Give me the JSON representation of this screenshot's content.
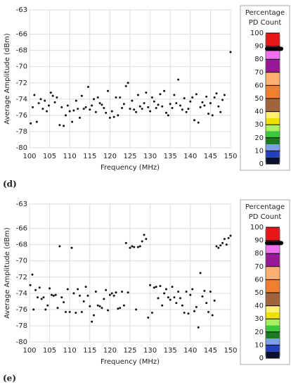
{
  "chart_data": [
    {
      "type": "scatter",
      "panel_label": "(d)",
      "xlabel": "Frequency (MHz)",
      "ylabel": "Average Amplitude (dBm)",
      "xlim": [
        100,
        150
      ],
      "ylim": [
        -80,
        -63
      ],
      "xticks": [
        100,
        105,
        110,
        115,
        120,
        125,
        130,
        135,
        140,
        145,
        150
      ],
      "yticks": [
        -80,
        -78,
        -76,
        -74,
        -72,
        -70,
        -68,
        -66,
        -63
      ],
      "grid": true,
      "color": "#111111",
      "x": [
        100.3,
        100.8,
        101.2,
        101.8,
        102.3,
        102.8,
        103.3,
        103.8,
        104.3,
        104.8,
        105.3,
        105.8,
        106.3,
        106.8,
        107.5,
        108,
        108.5,
        109,
        109.5,
        110,
        110.6,
        111,
        111.6,
        112,
        112.5,
        113,
        113.5,
        114,
        114.6,
        115,
        115.5,
        116,
        116.5,
        117,
        117.5,
        118,
        118.5,
        119,
        119.5,
        120,
        120.5,
        121,
        121.5,
        122,
        122.5,
        123,
        123.5,
        124,
        124.5,
        125,
        125.5,
        126,
        126.5,
        127,
        127.5,
        128,
        128.5,
        129,
        129.5,
        130,
        130.5,
        131,
        131.5,
        132,
        132.5,
        133,
        133.5,
        134,
        134.5,
        135,
        135.5,
        136,
        136.5,
        137,
        137.5,
        138,
        138.5,
        139,
        139.5,
        140,
        140.5,
        141,
        141.5,
        142,
        142.5,
        143,
        143.5,
        144,
        144.5,
        145,
        145.5,
        146,
        146.5,
        147,
        147.5,
        148,
        148.5,
        150
      ],
      "values": [
        -77,
        -75,
        -73.5,
        -76.8,
        -74.5,
        -74,
        -75.2,
        -74.2,
        -75.5,
        -74.8,
        -73.2,
        -73.6,
        -74.4,
        -73.8,
        -77.2,
        -75,
        -77.3,
        -76,
        -74.8,
        -75.5,
        -76.8,
        -75.4,
        -74.2,
        -75.2,
        -76.3,
        -73.6,
        -75.2,
        -75,
        -72.5,
        -75.3,
        -74.8,
        -74,
        -75.6,
        -73.8,
        -74.5,
        -74.7,
        -75.1,
        -75.7,
        -73,
        -76.3,
        -75.5,
        -76.2,
        -73.8,
        -76,
        -73.8,
        -75.1,
        -74.6,
        -72.4,
        -72,
        -75.2,
        -74.2,
        -75.3,
        -75.6,
        -73.5,
        -74.9,
        -75.2,
        -74.5,
        -73.2,
        -75,
        -75.5,
        -73.8,
        -74.3,
        -75.1,
        -74.7,
        -73.4,
        -74.9,
        -73,
        -75.7,
        -76,
        -74.6,
        -75.1,
        -73.5,
        -74.5,
        -71.6,
        -74.8,
        -75.3,
        -73.9,
        -75.6,
        -75.2,
        -74.3,
        -73.8,
        -76.6,
        -73.4,
        -76.9,
        -75,
        -74.4,
        -74.8,
        -73.7,
        -75.8,
        -74.5,
        -76,
        -73.8,
        -73.3,
        -74.9,
        -75.6,
        -74.1,
        -73.5,
        -68.2
      ],
      "colorbar": {
        "title": [
          "Percentage",
          "PD Count"
        ],
        "lim": [
          0,
          100
        ],
        "ticks": [
          0,
          10,
          20,
          30,
          40,
          50,
          60,
          70,
          80,
          90,
          100
        ],
        "thumb": 88,
        "segments": [
          {
            "from": 0,
            "to": 5,
            "color": "#0a1030"
          },
          {
            "from": 5,
            "to": 10,
            "color": "#2040c0"
          },
          {
            "from": 10,
            "to": 15,
            "color": "#7aa0e8"
          },
          {
            "from": 15,
            "to": 20,
            "color": "#1e7a1e"
          },
          {
            "from": 20,
            "to": 25,
            "color": "#3cc83c"
          },
          {
            "from": 25,
            "to": 30,
            "color": "#a8f060"
          },
          {
            "from": 30,
            "to": 35,
            "color": "#f0e000"
          },
          {
            "from": 35,
            "to": 40,
            "color": "#fff070"
          },
          {
            "from": 40,
            "to": 50,
            "color": "#a0643c"
          },
          {
            "from": 50,
            "to": 60,
            "color": "#f08030"
          },
          {
            "from": 60,
            "to": 70,
            "color": "#ffb070"
          },
          {
            "from": 70,
            "to": 80,
            "color": "#981898"
          },
          {
            "from": 80,
            "to": 90,
            "color": "#f070f0"
          },
          {
            "from": 90,
            "to": 100,
            "color": "#e81818"
          }
        ]
      }
    },
    {
      "type": "scatter",
      "panel_label": "(e)",
      "xlabel": "Frequency (MHz)",
      "ylabel": "Average Amplitude (dBm)",
      "xlim": [
        100,
        150
      ],
      "ylim": [
        -80,
        -63
      ],
      "xticks": [
        100,
        105,
        110,
        115,
        120,
        125,
        130,
        135,
        140,
        145,
        150
      ],
      "yticks": [
        -80,
        -78,
        -76,
        -74,
        -72,
        -70,
        -68,
        -66,
        -63
      ],
      "grid": true,
      "color": "#111111",
      "x": [
        100.2,
        100.7,
        101,
        101.5,
        102,
        102.5,
        103,
        103.5,
        104,
        104.5,
        105,
        105.5,
        106,
        106.5,
        107,
        107.5,
        108,
        108.5,
        109,
        109.5,
        110,
        110.5,
        111,
        111.5,
        112,
        112.5,
        113,
        113.5,
        114,
        114.5,
        115,
        115.5,
        116,
        116.5,
        117,
        117.5,
        118,
        118.5,
        119,
        119.5,
        120,
        120.5,
        121,
        121.5,
        122,
        122.5,
        123,
        123.5,
        124,
        124.5,
        125,
        125.5,
        126,
        126.5,
        127,
        127.5,
        128,
        128.5,
        129,
        129.5,
        130,
        130.5,
        131,
        131.5,
        132,
        132.5,
        133,
        133.5,
        134,
        134.5,
        135,
        135.5,
        136,
        136.5,
        137,
        137.5,
        138,
        138.5,
        139,
        139.5,
        140,
        140.5,
        141,
        141.5,
        142,
        142.5,
        143,
        143.5,
        144,
        144.5,
        145,
        145.5,
        146,
        146.5,
        147,
        147.5,
        148,
        148.5,
        149,
        149.5,
        150
      ],
      "values": [
        -73,
        -71.7,
        -76,
        -73.6,
        -74.5,
        -73.3,
        -74.7,
        -74.5,
        -76,
        -75.5,
        -73.4,
        -74.2,
        -74.3,
        -74.2,
        -75.8,
        -68.2,
        -74.5,
        -75.1,
        -76.3,
        -73.5,
        -76.3,
        -68.4,
        -74,
        -76.4,
        -73.5,
        -74.3,
        -76.3,
        -75,
        -73.2,
        -74.3,
        -75.6,
        -77.5,
        -76.7,
        -73.8,
        -75.5,
        -75.6,
        -75.8,
        -74.7,
        -73.6,
        -76.1,
        -74.2,
        -74,
        -74.3,
        -73.9,
        -75.9,
        -75.8,
        -73.8,
        -75.5,
        -67.8,
        -73.9,
        -68.4,
        -68.2,
        -68.3,
        -76,
        -68.3,
        -68.2,
        -67.6,
        -66.8,
        -67.3,
        -77,
        -73,
        -76.4,
        -73.3,
        -73.2,
        -74.6,
        -73.1,
        -75.5,
        -74,
        -73.5,
        -74.5,
        -74.8,
        -73.2,
        -74.5,
        -75.2,
        -73.8,
        -74.6,
        -75.5,
        -76.4,
        -73.8,
        -76.5,
        -74.2,
        -73.5,
        -76.2,
        -75.7,
        -78.2,
        -71.5,
        -74.4,
        -73.7,
        -75.2,
        -76.3,
        -73.8,
        -76.7,
        -74.9,
        -68.2,
        -68.4,
        -68.1,
        -67.8,
        -67.3,
        -68,
        -67.2,
        -66.9
      ],
      "colorbar": {
        "title": [
          "Percentage",
          "PD Count"
        ],
        "lim": [
          0,
          100
        ],
        "ticks": [
          0,
          10,
          20,
          30,
          40,
          50,
          60,
          70,
          80,
          90,
          100
        ],
        "thumb": 88,
        "segments": [
          {
            "from": 0,
            "to": 5,
            "color": "#0a1030"
          },
          {
            "from": 5,
            "to": 10,
            "color": "#2040c0"
          },
          {
            "from": 10,
            "to": 15,
            "color": "#7aa0e8"
          },
          {
            "from": 15,
            "to": 20,
            "color": "#1e7a1e"
          },
          {
            "from": 20,
            "to": 25,
            "color": "#3cc83c"
          },
          {
            "from": 25,
            "to": 30,
            "color": "#a8f060"
          },
          {
            "from": 30,
            "to": 35,
            "color": "#f0e000"
          },
          {
            "from": 35,
            "to": 40,
            "color": "#fff070"
          },
          {
            "from": 40,
            "to": 50,
            "color": "#a0643c"
          },
          {
            "from": 50,
            "to": 60,
            "color": "#f08030"
          },
          {
            "from": 60,
            "to": 70,
            "color": "#ffb070"
          },
          {
            "from": 70,
            "to": 80,
            "color": "#981898"
          },
          {
            "from": 80,
            "to": 90,
            "color": "#f070f0"
          },
          {
            "from": 90,
            "to": 100,
            "color": "#e81818"
          }
        ]
      }
    }
  ]
}
